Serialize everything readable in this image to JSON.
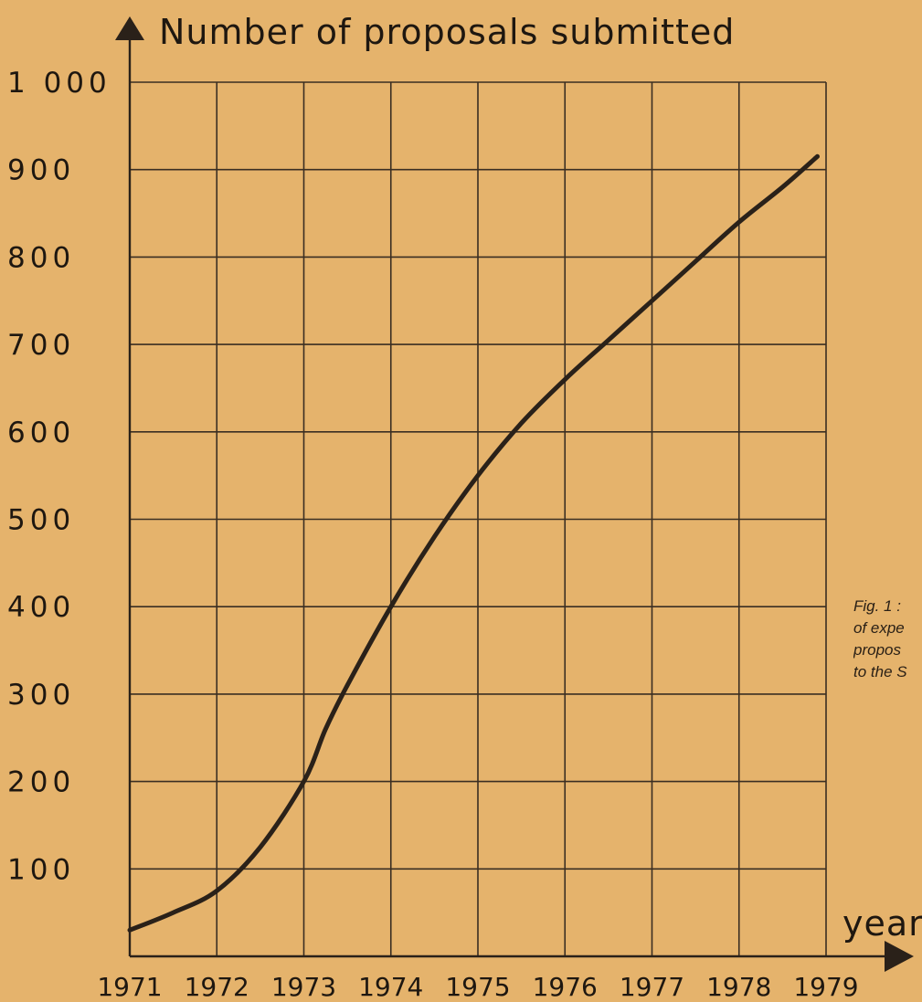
{
  "chart_data": {
    "type": "line",
    "ylabel": "Number of proposals submitted",
    "xlabel": "year",
    "caption": [
      "Fig. 1 :",
      "of expe",
      "propos",
      "to the S"
    ],
    "x_ticks": [
      "1971",
      "1972",
      "1973",
      "1974",
      "1975",
      "1976",
      "1977",
      "1978",
      "1979"
    ],
    "y_ticks": [
      "100",
      "200",
      "300",
      "400",
      "500",
      "600",
      "700",
      "800",
      "900",
      "1 000"
    ],
    "xlim": [
      1971,
      1979
    ],
    "ylim": [
      0,
      1000
    ],
    "grid": true,
    "line_color": "#2a2119",
    "series": [
      {
        "x": [
          1971,
          1971.5,
          1972,
          1972.5,
          1973,
          1973.25,
          1973.5,
          1974,
          1974.5,
          1975,
          1975.5,
          1976,
          1976.5,
          1977,
          1977.5,
          1978,
          1978.5,
          1978.9
        ],
        "y": [
          30,
          50,
          75,
          125,
          200,
          260,
          310,
          400,
          480,
          550,
          610,
          660,
          705,
          750,
          795,
          840,
          880,
          915
        ]
      }
    ]
  },
  "colors": {
    "background": "#e5b36c",
    "ink": "#2a2119",
    "grid": "#3a2e22"
  }
}
